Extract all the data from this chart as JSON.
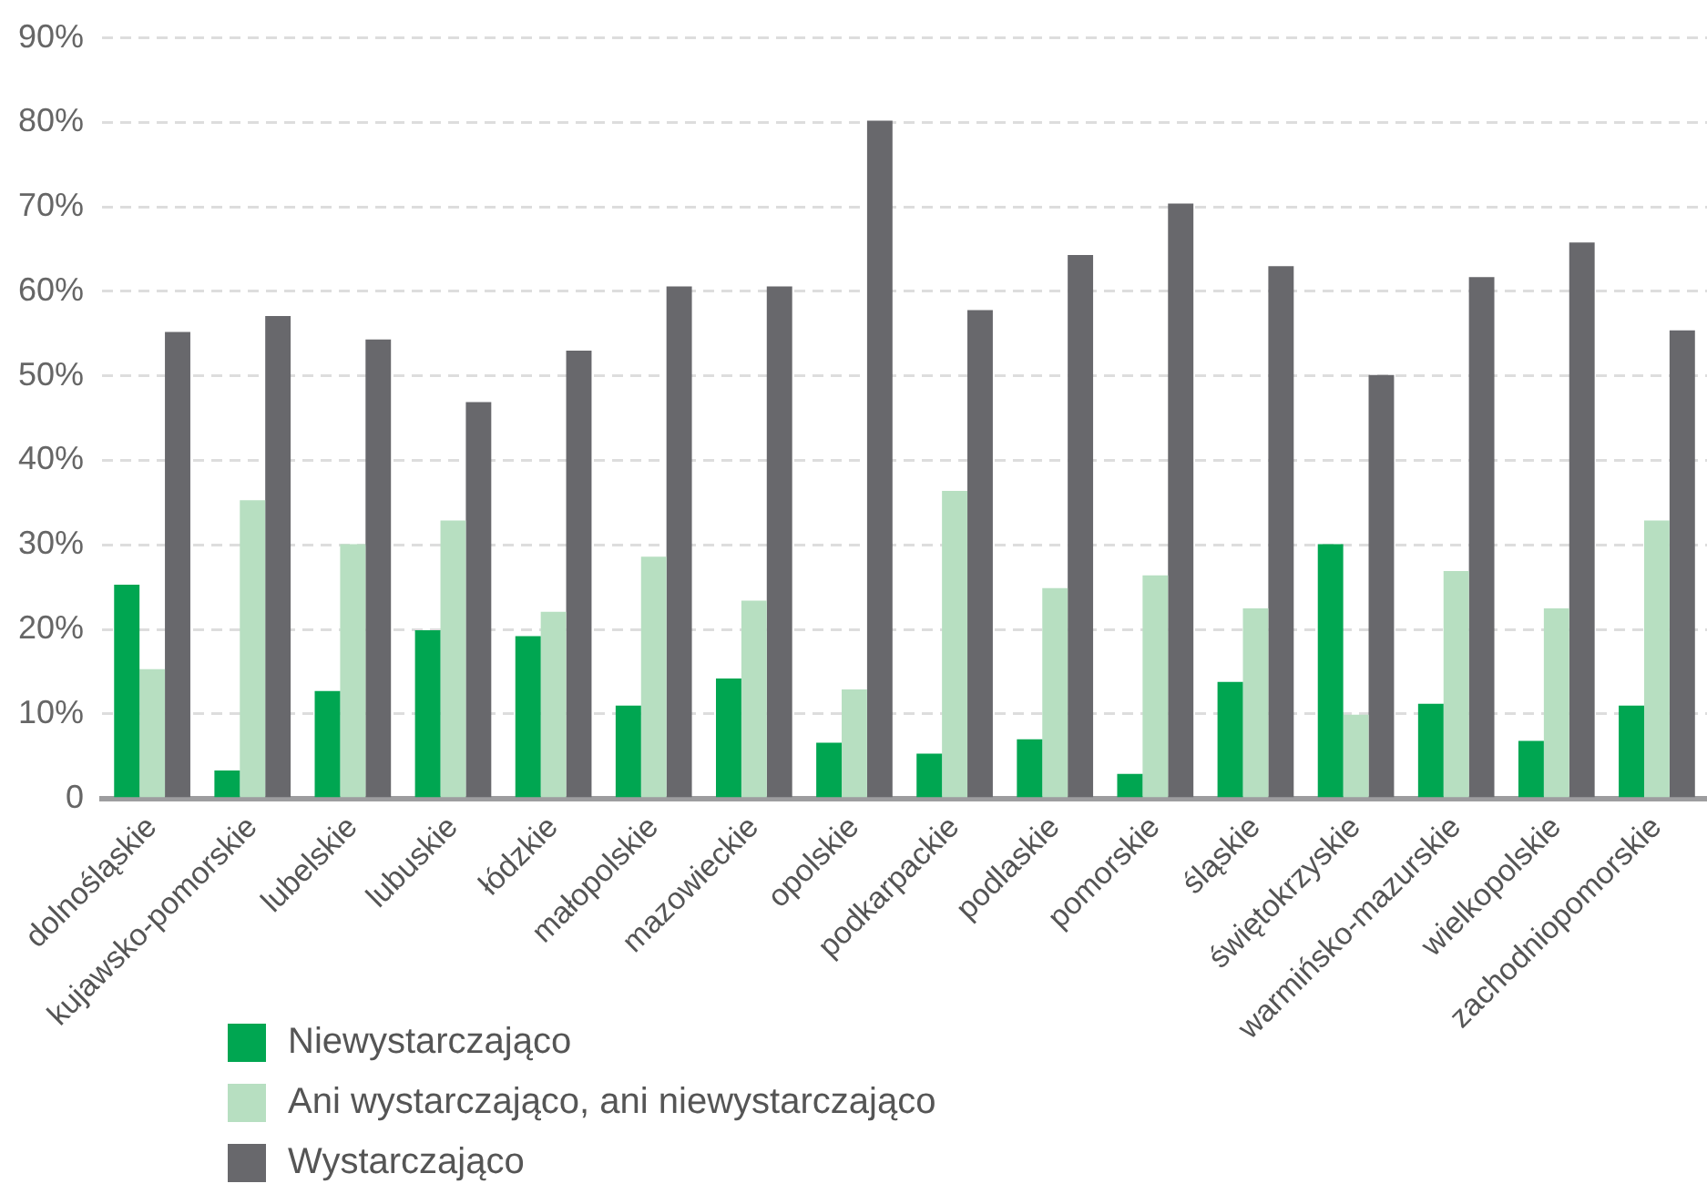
{
  "chart_data": {
    "type": "bar",
    "categories": [
      "dolnośląskie",
      "kujawsko-pomorskie",
      "lubelskie",
      "lubuskie",
      "łódzkie",
      "małopolskie",
      "mazowieckie",
      "opolskie",
      "podkarpackie",
      "podlaskie",
      "pomorskie",
      "śląskie",
      "świętokrzyskie",
      "warmińsko-mazurskie",
      "wielkopolskie",
      "zachodniopomorskie"
    ],
    "series": [
      {
        "name": "Niewystarczająco",
        "color": "#00a651",
        "values": [
          25.3,
          3.3,
          12.7,
          19.9,
          19.2,
          11.0,
          14.2,
          6.6,
          5.3,
          7.0,
          2.9,
          13.8,
          30.1,
          11.2,
          6.8,
          11.0
        ]
      },
      {
        "name": "Ani wystarczająco, ani niewystarczająco",
        "color": "#b7dfc1",
        "values": [
          15.3,
          35.3,
          30.1,
          32.9,
          22.1,
          28.6,
          23.4,
          12.9,
          36.4,
          24.9,
          26.4,
          22.5,
          9.9,
          26.9,
          22.5,
          32.9
        ]
      },
      {
        "name": "Wystarczająco",
        "color": "#68686c",
        "values": [
          55.2,
          57.1,
          54.3,
          46.9,
          53.0,
          60.6,
          60.6,
          80.2,
          57.8,
          64.3,
          70.4,
          63.0,
          50.1,
          61.7,
          65.8,
          55.4
        ]
      }
    ],
    "ylim": [
      0,
      90
    ],
    "yticks": [
      {
        "value": 0,
        "label": "0"
      },
      {
        "value": 10,
        "label": "10%"
      },
      {
        "value": 20,
        "label": "20%"
      },
      {
        "value": 30,
        "label": "30%"
      },
      {
        "value": 40,
        "label": "40%"
      },
      {
        "value": 50,
        "label": "50%"
      },
      {
        "value": 60,
        "label": "60%"
      },
      {
        "value": 70,
        "label": "70%"
      },
      {
        "value": 80,
        "label": "80%"
      },
      {
        "value": 90,
        "label": "90%"
      }
    ],
    "grid": "y",
    "legend": "bottom left"
  }
}
